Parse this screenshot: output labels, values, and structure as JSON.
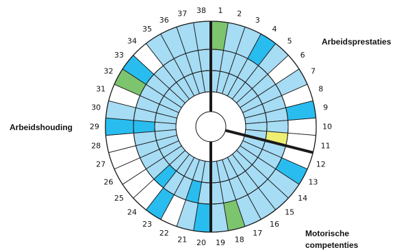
{
  "categories": {
    "arbeidsprestaties": "Arbeidsprestaties",
    "arbeidshouding": "Arbeidshouding",
    "motorische_line1": "Motorische",
    "motorische_line2": "competenties"
  },
  "colors": {
    "light_blue": "#a6dcf4",
    "blue": "#29bdef",
    "green": "#7dc46e",
    "yellow": "#eeee73",
    "white": "#ffffff",
    "stroke": "#1a1a1a"
  },
  "wheel": {
    "segments": 38,
    "rings": 3,
    "divider_lines_after_segment": [
      38,
      11,
      19
    ],
    "numbers": [
      "1",
      "2",
      "3",
      "4",
      "5",
      "6",
      "7",
      "8",
      "9",
      "10",
      "11",
      "12",
      "13",
      "14",
      "15",
      "16",
      "17",
      "18",
      "19",
      "20",
      "21",
      "22",
      "23",
      "24",
      "25",
      "26",
      "27",
      "28",
      "29",
      "30",
      "31",
      "32",
      "33",
      "34",
      "35",
      "36",
      "37",
      "38"
    ],
    "cells": [
      [
        "green",
        "light_blue",
        "light_blue"
      ],
      [
        "light_blue",
        "light_blue",
        "light_blue"
      ],
      [
        "light_blue",
        "light_blue",
        "light_blue"
      ],
      [
        "blue",
        "light_blue",
        "light_blue"
      ],
      [
        "light_blue",
        "light_blue",
        "light_blue"
      ],
      [
        "white",
        "light_blue",
        "light_blue"
      ],
      [
        "light_blue",
        "light_blue",
        "light_blue"
      ],
      [
        "white",
        "light_blue",
        "light_blue"
      ],
      [
        "blue",
        "light_blue",
        "light_blue"
      ],
      [
        "white",
        "light_blue",
        "light_blue"
      ],
      [
        "white",
        "yellow",
        "light_blue"
      ],
      [
        "white",
        "light_blue",
        "light_blue"
      ],
      [
        "blue",
        "light_blue",
        "light_blue"
      ],
      [
        "light_blue",
        "light_blue",
        "light_blue"
      ],
      [
        "light_blue",
        "light_blue",
        "light_blue"
      ],
      [
        "light_blue",
        "light_blue",
        "light_blue"
      ],
      [
        "light_blue",
        "light_blue",
        "light_blue"
      ],
      [
        "green",
        "light_blue",
        "light_blue"
      ],
      [
        "light_blue",
        "light_blue",
        "light_blue"
      ],
      [
        "blue",
        "light_blue",
        "light_blue"
      ],
      [
        "light_blue",
        "blue",
        "light_blue"
      ],
      [
        "white",
        "light_blue",
        "light_blue"
      ],
      [
        "blue",
        "light_blue",
        "light_blue"
      ],
      [
        "white",
        "blue",
        "light_blue"
      ],
      [
        "white",
        "light_blue",
        "light_blue"
      ],
      [
        "white",
        "light_blue",
        "light_blue"
      ],
      [
        "white",
        "light_blue",
        "light_blue"
      ],
      [
        "white",
        "light_blue",
        "light_blue"
      ],
      [
        "blue",
        "blue",
        "light_blue"
      ],
      [
        "light_blue",
        "light_blue",
        "light_blue"
      ],
      [
        "white",
        "light_blue",
        "light_blue"
      ],
      [
        "green",
        "light_blue",
        "light_blue"
      ],
      [
        "blue",
        "light_blue",
        "light_blue"
      ],
      [
        "white",
        "light_blue",
        "light_blue"
      ],
      [
        "light_blue",
        "light_blue",
        "light_blue"
      ],
      [
        "light_blue",
        "light_blue",
        "light_blue"
      ],
      [
        "light_blue",
        "light_blue",
        "light_blue"
      ],
      [
        "light_blue",
        "light_blue",
        "light_blue"
      ]
    ]
  }
}
